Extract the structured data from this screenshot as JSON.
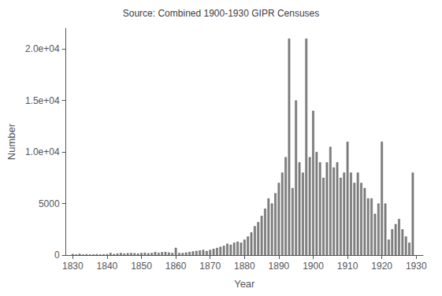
{
  "chart_data": {
    "type": "bar",
    "title": "Source: Combined 1900-1930 GIPR Censuses",
    "xlabel": "Year",
    "ylabel": "Number",
    "color": "#888888",
    "xlim": [
      1828,
      1932
    ],
    "ylim": [
      0,
      22000
    ],
    "xticks": [
      1830,
      1840,
      1850,
      1860,
      1870,
      1880,
      1890,
      1900,
      1910,
      1920,
      1930
    ],
    "yticks": [
      0,
      5000,
      {
        "value": 10000,
        "label": "1.0e+04"
      },
      {
        "value": 15000,
        "label": "1.5e+04"
      },
      {
        "value": 20000,
        "label": "2.0e+04"
      }
    ],
    "grid": false,
    "x": [
      1830,
      1831,
      1832,
      1833,
      1834,
      1835,
      1836,
      1837,
      1838,
      1839,
      1840,
      1841,
      1842,
      1843,
      1844,
      1845,
      1846,
      1847,
      1848,
      1849,
      1850,
      1851,
      1852,
      1853,
      1854,
      1855,
      1856,
      1857,
      1858,
      1859,
      1860,
      1861,
      1862,
      1863,
      1864,
      1865,
      1866,
      1867,
      1868,
      1869,
      1870,
      1871,
      1872,
      1873,
      1874,
      1875,
      1876,
      1877,
      1878,
      1879,
      1880,
      1881,
      1882,
      1883,
      1884,
      1885,
      1886,
      1887,
      1888,
      1889,
      1890,
      1891,
      1892,
      1893,
      1894,
      1895,
      1896,
      1897,
      1898,
      1899,
      1900,
      1901,
      1902,
      1903,
      1904,
      1905,
      1906,
      1907,
      1908,
      1909,
      1910,
      1911,
      1912,
      1913,
      1914,
      1915,
      1916,
      1917,
      1918,
      1919,
      1920,
      1921,
      1922,
      1923,
      1924,
      1925,
      1926,
      1927,
      1928,
      1929
    ],
    "values": [
      100,
      50,
      120,
      50,
      80,
      50,
      60,
      80,
      50,
      60,
      80,
      200,
      100,
      150,
      200,
      150,
      180,
      200,
      180,
      150,
      200,
      220,
      180,
      200,
      300,
      220,
      280,
      300,
      250,
      200,
      700,
      200,
      200,
      250,
      300,
      350,
      400,
      450,
      500,
      400,
      500,
      600,
      700,
      800,
      900,
      1100,
      1000,
      1200,
      1300,
      1200,
      1500,
      1800,
      2200,
      2800,
      3200,
      3800,
      4500,
      5500,
      5000,
      6000,
      7000,
      8000,
      9500,
      21000,
      6500,
      15000,
      9000,
      8000,
      21000,
      9500,
      14000,
      10000,
      9000,
      7500,
      9000,
      10500,
      8500,
      9000,
      7500,
      8000,
      11000,
      8000,
      7000,
      8000,
      7000,
      6500,
      5500,
      5500,
      4000,
      5000,
      11000,
      5000,
      1500,
      2500,
      3000,
      3500,
      2500,
      1800,
      1200,
      8000
    ]
  }
}
